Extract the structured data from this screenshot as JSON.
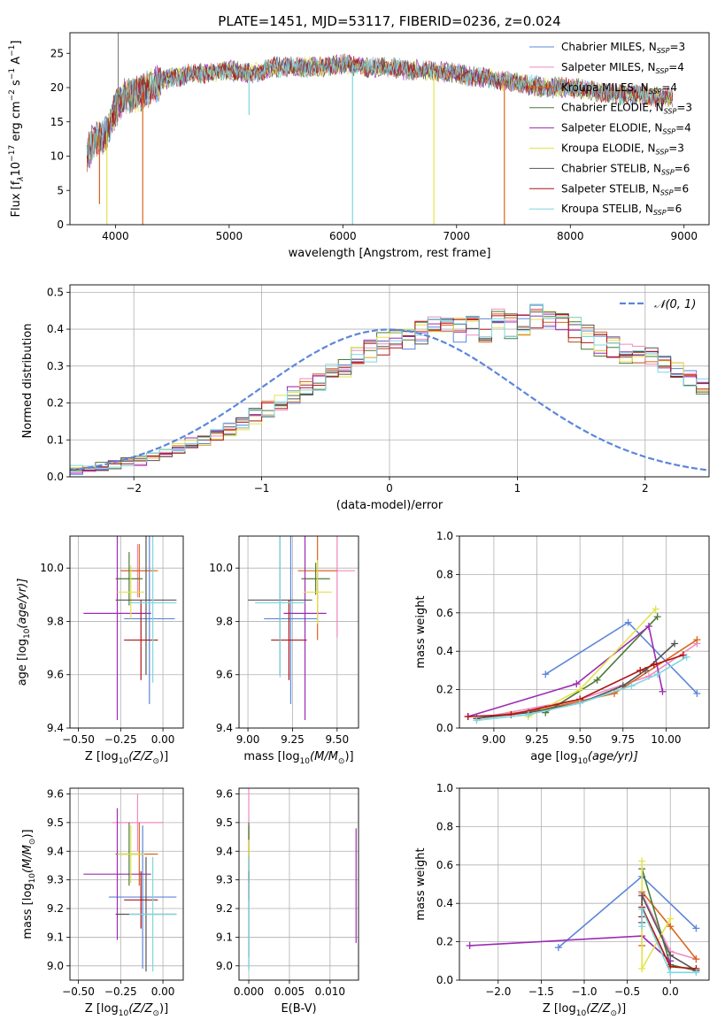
{
  "figure": {
    "title": "PLATE=1451, MJD=53117, FIBERID=0236, z=0.024"
  },
  "legend": {
    "entries": [
      {
        "label": "Chabrier MILES, N",
        "sub": "SSP",
        "suffix": "=3",
        "color": "#5b86dc"
      },
      {
        "label": "Salpeter MILES, N",
        "sub": "SSP",
        "suffix": "=4",
        "color": "#f08ac2"
      },
      {
        "label": "Kroupa MILES, N",
        "sub": "SSP",
        "suffix": "=4",
        "color": "#d9661c"
      },
      {
        "label": "Chabrier ELODIE, N",
        "sub": "SSP",
        "suffix": "=3",
        "color": "#4c7a34"
      },
      {
        "label": "Salpeter ELODIE, N",
        "sub": "SSP",
        "suffix": "=4",
        "color": "#9c2bb5"
      },
      {
        "label": "Kroupa ELODIE, N",
        "sub": "SSP",
        "suffix": "=3",
        "color": "#e3e34a"
      },
      {
        "label": "Chabrier STELIB, N",
        "sub": "SSP",
        "suffix": "=6",
        "color": "#555555"
      },
      {
        "label": "Salpeter STELIB, N",
        "sub": "SSP",
        "suffix": "=6",
        "color": "#b01515"
      },
      {
        "label": "Kroupa STELIB, N",
        "sub": "SSP",
        "suffix": "=6",
        "color": "#7fd6e0"
      }
    ]
  },
  "chart_data": [
    {
      "id": "spectrum",
      "type": "line",
      "xlabel": "wavelength [Angstrom, rest frame]",
      "ylabel_main": "Flux [f",
      "ylabel_tail": "10",
      "ylabel_exp": "−17",
      "ylabel_rest": " erg cm",
      "ylabel_e2": "−2",
      "ylabel_s": " s",
      "ylabel_e1": "−1",
      "ylabel_A": " A",
      "ylabel_e3": "−1",
      "ylabel_end": "]",
      "xlim": [
        3600,
        9220
      ],
      "ylim": [
        0,
        28
      ],
      "xticks": [
        4000,
        5000,
        6000,
        7000,
        8000,
        9000
      ],
      "xticklabels": [
        "4000",
        "5000",
        "6000",
        "7000",
        "8000",
        "9000"
      ],
      "yticks": [
        0,
        5,
        10,
        15,
        20,
        25
      ],
      "yticklabels": [
        "0",
        "5",
        "10",
        "15",
        "20",
        "25"
      ],
      "envelope": {
        "x": [
          3750,
          3800,
          3850,
          3900,
          3950,
          4000,
          4050,
          4100,
          4200,
          4300,
          4400,
          4500,
          4700,
          5000,
          5200,
          5400,
          5600,
          5800,
          6000,
          6200,
          6400,
          6600,
          6800,
          7000,
          7200,
          7400,
          7600,
          7800,
          8000,
          8200,
          8400,
          8600,
          8800,
          8900
        ],
        "y": [
          10,
          12,
          13,
          13,
          14,
          17,
          18,
          19,
          19,
          20,
          21,
          21.5,
          22,
          22.5,
          22,
          23,
          23,
          23,
          23.5,
          23,
          23,
          22.5,
          22.5,
          22,
          21.5,
          21,
          20.5,
          20,
          20,
          19.5,
          19,
          19,
          18.5,
          18.5
        ]
      },
      "dips": [
        {
          "x": 3860,
          "y": 3,
          "color": "#d9661c"
        },
        {
          "x": 3925,
          "y": 0,
          "color": "#e3e34a"
        },
        {
          "x": 4240,
          "y": 0,
          "color": "#d9661c"
        },
        {
          "x": 5175,
          "y": 16,
          "color": "#7fd6e0"
        },
        {
          "x": 6085,
          "y": 0,
          "color": "#7fd6e0"
        },
        {
          "x": 6800,
          "y": 0,
          "color": "#e3e34a"
        },
        {
          "x": 7420,
          "y": 0,
          "color": "#d9661c"
        }
      ],
      "spike": {
        "x": 4025,
        "y": 28,
        "color": "#555555"
      }
    },
    {
      "id": "residuals",
      "type": "bar",
      "xlabel": "(data-model)/error",
      "ylabel": "Normed distribution",
      "xlim": [
        -2.5,
        2.5
      ],
      "ylim": [
        0,
        0.52
      ],
      "xticks": [
        -2,
        -1,
        0,
        1,
        2
      ],
      "xticklabels": [
        "−2",
        "−1",
        "0",
        "1",
        "2"
      ],
      "yticks": [
        0,
        0.1,
        0.2,
        0.3,
        0.4,
        0.5
      ],
      "yticklabels": [
        "0.0",
        "0.1",
        "0.2",
        "0.3",
        "0.4",
        "0.5"
      ],
      "bin_width": 0.1,
      "bin_start": -2.5,
      "base_hist": [
        0.02,
        0.025,
        0.03,
        0.035,
        0.04,
        0.045,
        0.055,
        0.065,
        0.075,
        0.09,
        0.1,
        0.115,
        0.13,
        0.145,
        0.165,
        0.185,
        0.2,
        0.22,
        0.24,
        0.26,
        0.28,
        0.3,
        0.32,
        0.34,
        0.36,
        0.37,
        0.38,
        0.39,
        0.4,
        0.41,
        0.4,
        0.41,
        0.4,
        0.42,
        0.41,
        0.42,
        0.43,
        0.42,
        0.41,
        0.4,
        0.38,
        0.36,
        0.35,
        0.34,
        0.33,
        0.32,
        0.3,
        0.28,
        0.26,
        0.24,
        0.22,
        0.2,
        0.18,
        0.16,
        0.15,
        0.13,
        0.11,
        0.1,
        0.09,
        0.08,
        0.07,
        0.06,
        0.05,
        0.04,
        0.035,
        0.03,
        0.025,
        0.025,
        0.02,
        0.02
      ],
      "normal_label": "𝒩(0, 1)",
      "normal_color": "#5b86dc"
    },
    {
      "id": "age-vs-Z",
      "type": "scatter",
      "xlabel_pre": "Z [log",
      "xlabel_sub": "10",
      "xlabel_post": "(Z/Z",
      "xlabel_sun": "⊙",
      "xlabel_end": ")]",
      "ylabel_pre": "age  [log",
      "ylabel_sub": "10",
      "ylabel_post": "(age/yr)]",
      "xlim": [
        -0.55,
        0.12
      ],
      "ylim": [
        9.4,
        10.12
      ],
      "xticks": [
        -0.5,
        -0.25,
        0
      ],
      "xticklabels": [
        "−0.50",
        "−0.25",
        "0.00"
      ],
      "yticks": [
        9.4,
        9.6,
        9.8,
        10.0
      ],
      "yticklabels": [
        "9.4",
        "9.6",
        "9.8",
        "10.0"
      ],
      "points": [
        {
          "x": -0.08,
          "y": 9.81,
          "xerr": 0.15,
          "yerr": 0.32,
          "color": "#5b86dc"
        },
        {
          "x": -0.15,
          "y": 9.99,
          "xerr": 0.1,
          "yerr": 0.1,
          "color": "#f08ac2"
        },
        {
          "x": -0.14,
          "y": 9.99,
          "xerr": 0.11,
          "yerr": 0.1,
          "color": "#d9661c"
        },
        {
          "x": -0.2,
          "y": 9.96,
          "xerr": 0.08,
          "yerr": 0.1,
          "color": "#4c7a34"
        },
        {
          "x": -0.27,
          "y": 9.83,
          "xerr": 0.2,
          "yerr": 0.4,
          "color": "#9c2bb5"
        },
        {
          "x": -0.19,
          "y": 9.91,
          "xerr": 0.08,
          "yerr": 0.1,
          "color": "#e3e34a"
        },
        {
          "x": -0.1,
          "y": 9.88,
          "xerr": 0.18,
          "yerr": 0.28,
          "color": "#555555"
        },
        {
          "x": -0.13,
          "y": 9.73,
          "xerr": 0.1,
          "yerr": 0.15,
          "color": "#b01515"
        },
        {
          "x": -0.06,
          "y": 9.87,
          "xerr": 0.14,
          "yerr": 0.3,
          "color": "#7fd6e0"
        }
      ]
    },
    {
      "id": "age-vs-mass",
      "type": "scatter",
      "xlabel_pre": "mass [log",
      "xlabel_sub": "10",
      "xlabel_post": "(M/M",
      "xlabel_sun": "⊙",
      "xlabel_end": ")]",
      "xlim": [
        8.95,
        9.62
      ],
      "ylim": [
        9.4,
        10.12
      ],
      "xticks": [
        9.0,
        9.25,
        9.5
      ],
      "xticklabels": [
        "9.00",
        "9.25",
        "9.50"
      ],
      "yticks": [
        9.4,
        9.6,
        9.8,
        10.0
      ],
      "yticklabels": [
        "9.4",
        "9.6",
        "9.8",
        "10.0"
      ],
      "points": [
        {
          "x": 9.24,
          "y": 9.81,
          "xerr": 0.15,
          "yerr": 0.32,
          "color": "#5b86dc"
        },
        {
          "x": 9.5,
          "y": 9.99,
          "xerr": 0.1,
          "yerr": 0.25,
          "color": "#f08ac2"
        },
        {
          "x": 9.39,
          "y": 9.99,
          "xerr": 0.11,
          "yerr": 0.26,
          "color": "#d9661c"
        },
        {
          "x": 9.38,
          "y": 9.96,
          "xerr": 0.08,
          "yerr": 0.06,
          "color": "#4c7a34"
        },
        {
          "x": 9.32,
          "y": 9.83,
          "xerr": 0.12,
          "yerr": 0.4,
          "color": "#9c2bb5"
        },
        {
          "x": 9.39,
          "y": 9.91,
          "xerr": 0.08,
          "yerr": 0.12,
          "color": "#e3e34a"
        },
        {
          "x": 9.18,
          "y": 9.88,
          "xerr": 0.18,
          "yerr": 0.28,
          "color": "#555555"
        },
        {
          "x": 9.23,
          "y": 9.73,
          "xerr": 0.1,
          "yerr": 0.15,
          "color": "#b01515"
        },
        {
          "x": 9.18,
          "y": 9.87,
          "xerr": 0.14,
          "yerr": 0.28,
          "color": "#7fd6e0"
        }
      ]
    },
    {
      "id": "weight-vs-age",
      "type": "line",
      "xlabel_pre": "age  [log",
      "xlabel_sub": "10",
      "xlabel_post": "(age/yr)]",
      "ylabel": "mass weight",
      "xlim": [
        8.8,
        10.25
      ],
      "ylim": [
        0,
        1.0
      ],
      "xticks": [
        9.0,
        9.25,
        9.5,
        9.75,
        10.0
      ],
      "xticklabels": [
        "9.00",
        "9.25",
        "9.50",
        "9.75",
        "10.00"
      ],
      "yticks": [
        0,
        0.2,
        0.4,
        0.6,
        0.8,
        1.0
      ],
      "yticklabels": [
        "0.0",
        "0.2",
        "0.4",
        "0.6",
        "0.8",
        "1.0"
      ],
      "series": [
        {
          "color": "#5b86dc",
          "x": [
            9.3,
            9.78,
            10.18
          ],
          "y": [
            0.28,
            0.55,
            0.18
          ]
        },
        {
          "color": "#f08ac2",
          "x": [
            8.9,
            9.5,
            9.9,
            10.18
          ],
          "y": [
            0.05,
            0.15,
            0.27,
            0.44
          ]
        },
        {
          "color": "#d9661c",
          "x": [
            8.9,
            9.3,
            9.7,
            10.18
          ],
          "y": [
            0.05,
            0.1,
            0.18,
            0.46
          ]
        },
        {
          "color": "#4c7a34",
          "x": [
            9.3,
            9.6,
            9.95
          ],
          "y": [
            0.08,
            0.25,
            0.58
          ]
        },
        {
          "color": "#9c2bb5",
          "x": [
            8.85,
            9.48,
            9.9,
            9.98
          ],
          "y": [
            0.06,
            0.23,
            0.53,
            0.19
          ]
        },
        {
          "color": "#e3e34a",
          "x": [
            9.2,
            9.5,
            9.94
          ],
          "y": [
            0.06,
            0.2,
            0.62
          ]
        },
        {
          "color": "#555555",
          "x": [
            8.9,
            9.2,
            9.5,
            9.75,
            9.88,
            10.05
          ],
          "y": [
            0.05,
            0.08,
            0.13,
            0.22,
            0.3,
            0.44
          ]
        },
        {
          "color": "#b01515",
          "x": [
            8.85,
            9.1,
            9.5,
            9.85,
            9.93,
            10.1
          ],
          "y": [
            0.06,
            0.07,
            0.15,
            0.3,
            0.33,
            0.38
          ]
        },
        {
          "color": "#7fd6e0",
          "x": [
            8.9,
            9.2,
            9.5,
            9.8,
            9.95,
            10.12
          ],
          "y": [
            0.04,
            0.07,
            0.13,
            0.22,
            0.28,
            0.37
          ]
        }
      ]
    },
    {
      "id": "mass-vs-Z",
      "type": "scatter",
      "xlabel_pre": "Z [log",
      "xlabel_sub": "10",
      "xlabel_post": "(Z/Z",
      "xlabel_sun": "⊙",
      "xlabel_end": ")]",
      "ylabel_pre": "mass [log",
      "ylabel_sub": "10",
      "ylabel_post": "(M/M",
      "ylabel_sun": "⊙",
      "ylabel_end": ")]",
      "xlim": [
        -0.55,
        0.12
      ],
      "ylim": [
        8.95,
        9.62
      ],
      "xticks": [
        -0.5,
        -0.25,
        0
      ],
      "xticklabels": [
        "−0.50",
        "−0.25",
        "0.00"
      ],
      "yticks": [
        9.0,
        9.1,
        9.2,
        9.3,
        9.4,
        9.5,
        9.6
      ],
      "yticklabels": [
        "9.0",
        "9.1",
        "9.2",
        "9.3",
        "9.4",
        "9.5",
        "9.6"
      ],
      "points": [
        {
          "x": -0.12,
          "y": 9.24,
          "xerr": 0.2,
          "yerr": 0.25,
          "color": "#5b86dc"
        },
        {
          "x": -0.15,
          "y": 9.5,
          "xerr": 0.15,
          "yerr": 0.1,
          "color": "#f08ac2"
        },
        {
          "x": -0.14,
          "y": 9.39,
          "xerr": 0.11,
          "yerr": 0.11,
          "color": "#d9661c"
        },
        {
          "x": -0.2,
          "y": 9.39,
          "xerr": 0.08,
          "yerr": 0.11,
          "color": "#4c7a34"
        },
        {
          "x": -0.27,
          "y": 9.32,
          "xerr": 0.2,
          "yerr": 0.23,
          "color": "#9c2bb5"
        },
        {
          "x": -0.19,
          "y": 9.39,
          "xerr": 0.08,
          "yerr": 0.1,
          "color": "#e3e34a"
        },
        {
          "x": -0.1,
          "y": 9.18,
          "xerr": 0.18,
          "yerr": 0.2,
          "color": "#555555"
        },
        {
          "x": -0.13,
          "y": 9.23,
          "xerr": 0.1,
          "yerr": 0.1,
          "color": "#b01515"
        },
        {
          "x": -0.06,
          "y": 9.18,
          "xerr": 0.14,
          "yerr": 0.2,
          "color": "#7fd6e0"
        }
      ]
    },
    {
      "id": "mass-vs-ebv",
      "type": "scatter",
      "xlabel": "E(B-V)",
      "xlim": [
        -0.0012,
        0.0135
      ],
      "ylim": [
        8.95,
        9.62
      ],
      "xticks": [
        0,
        0.005,
        0.01
      ],
      "xticklabels": [
        "0.000",
        "0.005",
        "0.010"
      ],
      "yticks": [
        9.0,
        9.1,
        9.2,
        9.3,
        9.4,
        9.5,
        9.6
      ],
      "yticklabels": [
        "9.0",
        "9.1",
        "9.2",
        "9.3",
        "9.4",
        "9.5",
        "9.6"
      ],
      "points": [
        {
          "x": 0.0,
          "y": 9.24,
          "xerr": 0,
          "yerr": 0.25,
          "color": "#5b86dc"
        },
        {
          "x": 0.0,
          "y": 9.5,
          "xerr": 0,
          "yerr": 0.12,
          "color": "#f08ac2"
        },
        {
          "x": 0.0,
          "y": 9.39,
          "xerr": 0,
          "yerr": 0.1,
          "color": "#d9661c"
        },
        {
          "x": 0.0,
          "y": 9.4,
          "xerr": 0,
          "yerr": 0.1,
          "color": "#4c7a34"
        },
        {
          "x": 0.0132,
          "y": 9.28,
          "xerr": 0,
          "yerr": 0.2,
          "color": "#9c2bb5"
        },
        {
          "x": 0.0,
          "y": 9.39,
          "xerr": 0,
          "yerr": 0.05,
          "color": "#e3e34a"
        },
        {
          "x": 0.0,
          "y": 9.18,
          "xerr": 0,
          "yerr": 0.15,
          "color": "#555555"
        },
        {
          "x": 0.0,
          "y": 9.28,
          "xerr": 0,
          "yerr": 0.05,
          "color": "#b01515"
        },
        {
          "x": 0.0,
          "y": 9.18,
          "xerr": 0,
          "yerr": 0.2,
          "color": "#7fd6e0"
        }
      ]
    },
    {
      "id": "weight-vs-Z",
      "type": "line",
      "xlabel_pre": "Z [log",
      "xlabel_sub": "10",
      "xlabel_post": "(Z/Z",
      "xlabel_sun": "⊙",
      "xlabel_end": ")]",
      "ylabel": "mass weight",
      "xlim": [
        -2.45,
        0.45
      ],
      "ylim": [
        0,
        1.0
      ],
      "xticks": [
        -2.0,
        -1.5,
        -1.0,
        -0.5,
        0.0
      ],
      "xticklabels": [
        "−2.0",
        "−1.5",
        "−1.0",
        "−0.5",
        "0.0"
      ],
      "yticks": [
        0,
        0.2,
        0.4,
        0.6,
        0.8,
        1.0
      ],
      "yticklabels": [
        "0.0",
        "0.2",
        "0.4",
        "0.6",
        "0.8",
        "1.0"
      ],
      "series": [
        {
          "color": "#5b86dc",
          "x": [
            -1.3,
            -0.33,
            0.3
          ],
          "y": [
            0.17,
            0.54,
            0.27
          ]
        },
        {
          "color": "#f08ac2",
          "x": [
            -0.33,
            0.0,
            0.3
          ],
          "y": [
            0.45,
            0.15,
            0.11
          ]
        },
        {
          "color": "#d9661c",
          "x": [
            -0.33,
            -0.33,
            0.0,
            0.3
          ],
          "y": [
            0.18,
            0.46,
            0.28,
            0.11
          ]
        },
        {
          "color": "#4c7a34",
          "x": [
            -0.33,
            0.0,
            0.3
          ],
          "y": [
            0.58,
            0.08,
            0.05
          ]
        },
        {
          "color": "#9c2bb5",
          "x": [
            -2.33,
            -0.33,
            0.0
          ],
          "y": [
            0.18,
            0.23,
            0.1
          ]
        },
        {
          "color": "#e3e34a",
          "x": [
            -0.33,
            -0.33,
            0.0
          ],
          "y": [
            0.62,
            0.06,
            0.32
          ]
        },
        {
          "color": "#555555",
          "x": [
            -0.33,
            -0.33,
            0.0,
            0.3
          ],
          "y": [
            0.3,
            0.44,
            0.13,
            0.05
          ]
        },
        {
          "color": "#b01515",
          "x": [
            -0.33,
            -0.33,
            0.0,
            0.3
          ],
          "y": [
            0.33,
            0.38,
            0.07,
            0.06
          ]
        },
        {
          "color": "#7fd6e0",
          "x": [
            -0.33,
            -0.33,
            0.0,
            0.3
          ],
          "y": [
            0.28,
            0.37,
            0.04,
            0.04
          ]
        }
      ]
    }
  ]
}
